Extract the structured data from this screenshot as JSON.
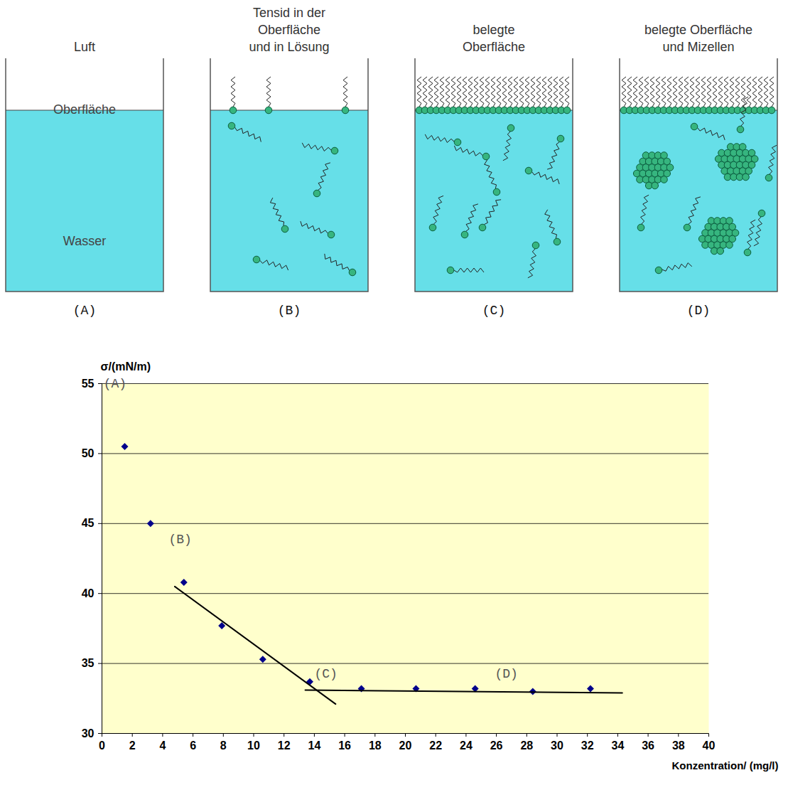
{
  "diagram": {
    "panels": [
      {
        "letter": "(A)",
        "title_lines": [
          "Luft"
        ],
        "surface_label": "Oberfläche",
        "water_label": "Wasser"
      },
      {
        "letter": "(B)",
        "title_lines": [
          "Tensid in der",
          "Oberfläche",
          "und in Lösung"
        ]
      },
      {
        "letter": "(C)",
        "title_lines": [
          "belegte",
          "Oberfläche"
        ]
      },
      {
        "letter": "(D)",
        "title_lines": [
          "belegte Oberfläche",
          "und Mizellen"
        ]
      }
    ]
  },
  "chart_data": {
    "type": "scatter",
    "y_label": "σ/(mN/m)",
    "x_label": "Konzentration/ (mg/l)",
    "xlim": [
      0,
      40
    ],
    "xticks": [
      0,
      2,
      4,
      6,
      8,
      10,
      12,
      14,
      16,
      18,
      20,
      22,
      24,
      26,
      28,
      30,
      32,
      34,
      36,
      38,
      40
    ],
    "ylim": [
      30,
      55
    ],
    "yticks": [
      30,
      35,
      40,
      45,
      50,
      55
    ],
    "grid": true,
    "series": [
      {
        "type": "scatter",
        "marker": "diamond",
        "color": "#00008b",
        "x": [
          1.5,
          3.2,
          5.4,
          7.9,
          10.6,
          13.7,
          17.1,
          20.7,
          24.6,
          28.4,
          32.2
        ],
        "values": [
          50.5,
          45.0,
          40.8,
          37.7,
          35.3,
          33.7,
          33.2,
          33.2,
          33.2,
          33.0,
          33.2
        ]
      },
      {
        "type": "line",
        "color": "#000000",
        "x": [
          4.8,
          15.4
        ],
        "values": [
          40.5,
          32.1
        ]
      },
      {
        "type": "line",
        "color": "#000000",
        "x": [
          13.4,
          34.3
        ],
        "values": [
          33.1,
          32.9
        ]
      }
    ],
    "annotations": [
      {
        "text": "(A)",
        "x": 0.1,
        "y": 55
      },
      {
        "text": "(B)",
        "x": 4.4,
        "y": 43.9
      },
      {
        "text": "(C)",
        "x": 14.0,
        "y": 34.3
      },
      {
        "text": "(D)",
        "x": 25.9,
        "y": 34.3
      }
    ]
  }
}
